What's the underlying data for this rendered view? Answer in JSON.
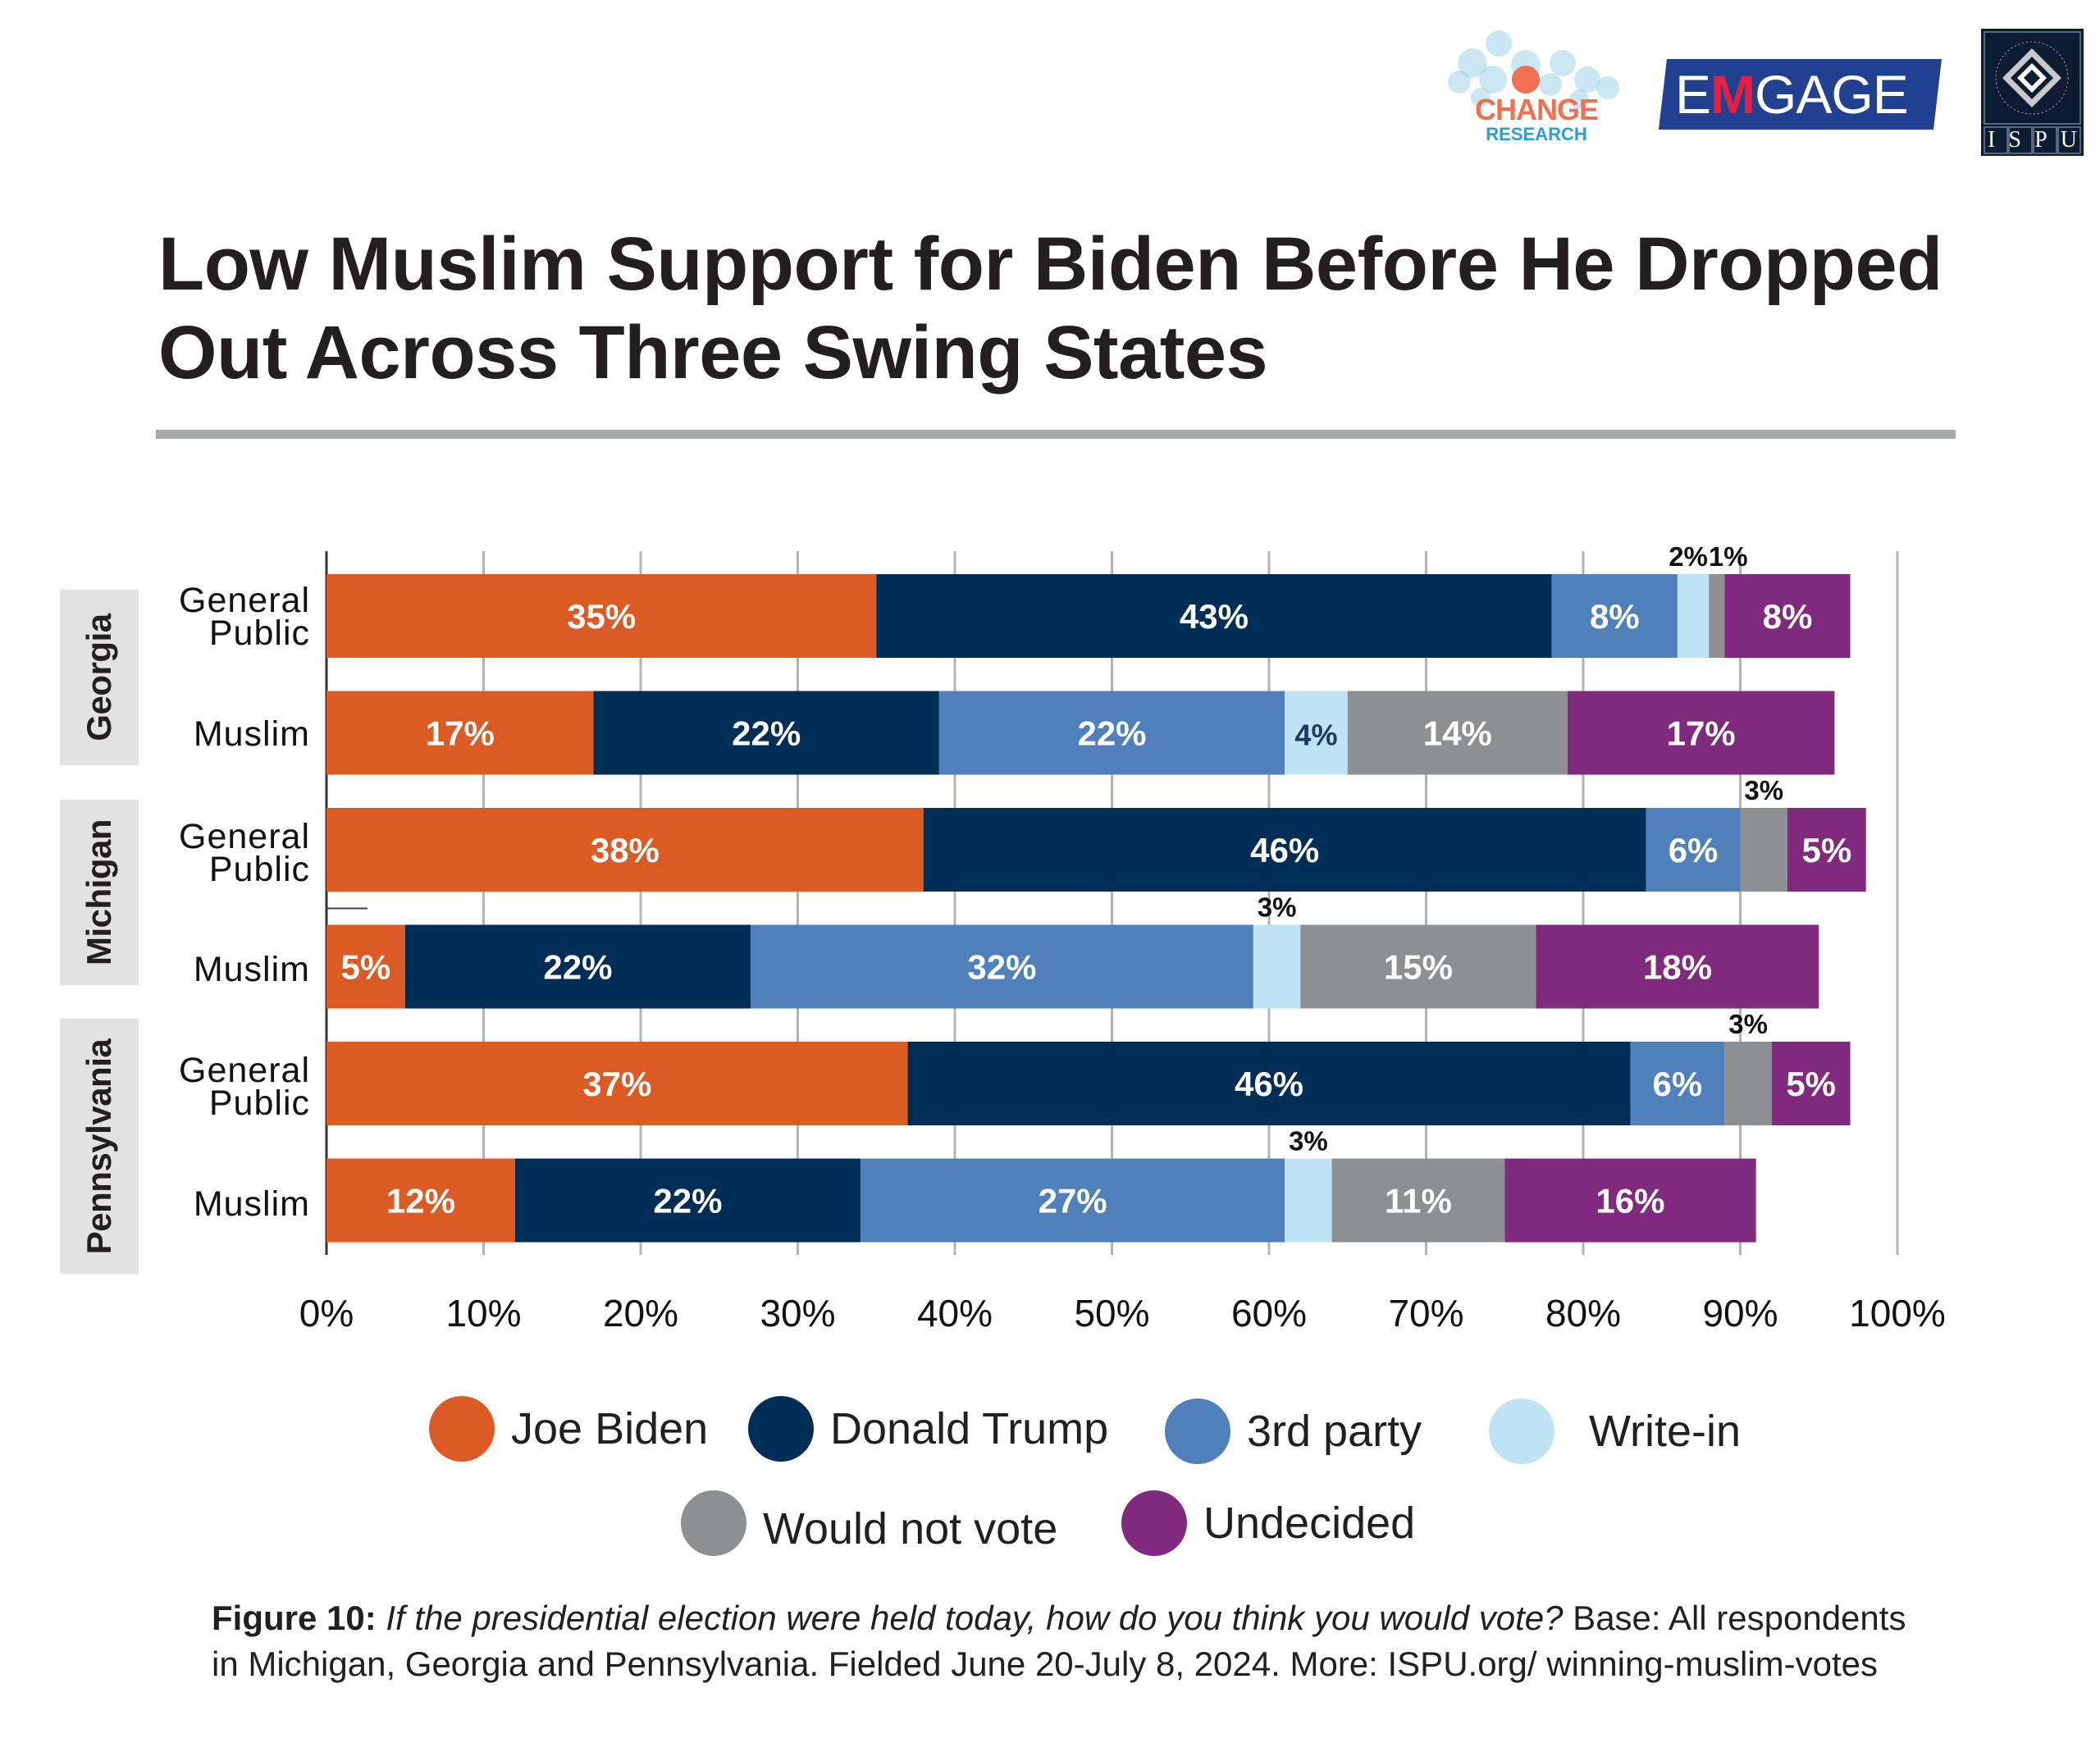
{
  "logos": {
    "change_research": {
      "line1": "CHANGE",
      "line2": "RESEARCH"
    },
    "emgage": {
      "pre": "E",
      "accent": "M",
      "post": "GAGE"
    },
    "ispu": {
      "ring_text": "INSTITUTE FOR SOCIAL POLICY AND UNDERSTANDING",
      "letters": [
        "I",
        "S",
        "P",
        "U"
      ]
    }
  },
  "title": {
    "line1": "Low Muslim Support for Biden Before He Dropped",
    "line2": "Out Across Three Swing States"
  },
  "colors": {
    "Joe Biden": "#dc5a24",
    "Donald Trump": "#002d56",
    "3rd party": "#5080bb",
    "Write-in": "#bfe3f5",
    "Would not vote": "#8e8f91",
    "Undecided": "#7f2a7d"
  },
  "chart_data": {
    "type": "bar",
    "orientation": "horizontal",
    "stacked": true,
    "title": "Low Muslim Support for Biden Before He Dropped Out Across Three Swing States",
    "xlabel": "",
    "ylabel": "",
    "xlim": [
      0,
      100
    ],
    "x_ticks": [
      "0%",
      "10%",
      "20%",
      "30%",
      "40%",
      "50%",
      "60%",
      "70%",
      "80%",
      "90%",
      "100%"
    ],
    "grid": "vertical",
    "legend_position": "bottom",
    "groups": [
      {
        "name": "Georgia",
        "rows": [
          0,
          1
        ]
      },
      {
        "name": "Michigan",
        "rows": [
          2,
          3
        ]
      },
      {
        "name": "Pennsylvania",
        "rows": [
          4,
          5
        ]
      }
    ],
    "categories": [
      "Georgia - General Public",
      "Georgia - Muslim",
      "Michigan - General Public",
      "Michigan - Muslim",
      "Pennsylvania - General Public",
      "Pennsylvania - Muslim"
    ],
    "row_labels": [
      [
        "General",
        "Public"
      ],
      [
        "Muslim"
      ],
      [
        "General",
        "Public"
      ],
      [
        "Muslim"
      ],
      [
        "General",
        "Public"
      ],
      [
        "Muslim"
      ]
    ],
    "series": [
      {
        "name": "Joe Biden",
        "values": [
          35,
          17,
          38,
          5,
          37,
          12
        ]
      },
      {
        "name": "Donald Trump",
        "values": [
          43,
          22,
          46,
          22,
          46,
          22
        ]
      },
      {
        "name": "3rd party",
        "values": [
          8,
          22,
          6,
          32,
          6,
          27
        ]
      },
      {
        "name": "Write-in",
        "values": [
          2,
          4,
          0,
          3,
          0,
          3
        ]
      },
      {
        "name": "Would not vote",
        "values": [
          1,
          14,
          3,
          15,
          3,
          11
        ]
      },
      {
        "name": "Undecided",
        "values": [
          8,
          17,
          5,
          18,
          5,
          16
        ]
      }
    ],
    "labels_above": [
      {
        "row": 0,
        "series": "Write-in"
      },
      {
        "row": 0,
        "series": "Would not vote"
      },
      {
        "row": 2,
        "series": "Would not vote"
      },
      {
        "row": 3,
        "series": "Write-in"
      },
      {
        "row": 4,
        "series": "Would not vote"
      },
      {
        "row": 5,
        "series": "Write-in"
      }
    ]
  },
  "legend": {
    "row1": [
      "Joe Biden",
      "Donald Trump",
      "3rd party",
      "Write-in"
    ],
    "row2": [
      "Would not vote",
      "Undecided"
    ]
  },
  "caption": {
    "figure_label": "Figure 10:",
    "question": "If the presidential election were held today, how do you think you would vote?",
    "rest": " Base: All respondents in Michigan, Georgia and Pennsylvania. Fielded June 20-July 8, 2024. More: ISPU.org/ winning-muslim-votes"
  }
}
